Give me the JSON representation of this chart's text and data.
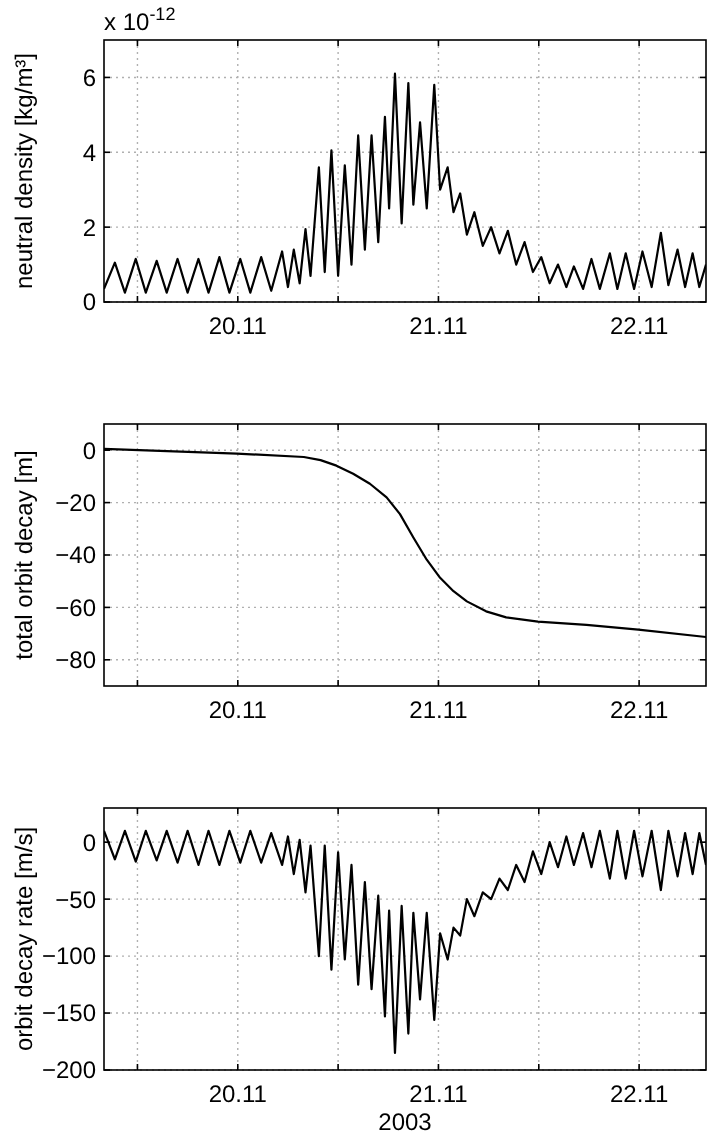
{
  "chart_data": [
    {
      "type": "line",
      "ylabel": "neutral density [kg/m³]",
      "annotations": [
        "x 10$^{-12}$"
      ],
      "grid": true,
      "xlim": [
        "2003-11-19T08:00",
        "2003-11-22T08:00"
      ],
      "xticks": [
        {
          "value": "2003-11-19T12:00",
          "label": null
        },
        {
          "value": "2003-11-20T00:00",
          "label": "20.11"
        },
        {
          "value": "2003-11-20T12:00",
          "label": null
        },
        {
          "value": "2003-11-21T00:00",
          "label": "21.11"
        },
        {
          "value": "2003-11-21T12:00",
          "label": null
        },
        {
          "value": "2003-11-22T00:00",
          "label": "22.11"
        }
      ],
      "ylim": [
        0,
        7
      ],
      "yticks": [
        0,
        2,
        4,
        6
      ],
      "x": [
        "2003-11-19T08:00",
        "2003-11-19T09:18",
        "2003-11-19T10:30",
        "2003-11-19T11:48",
        "2003-11-19T13:00",
        "2003-11-19T14:18",
        "2003-11-19T15:30",
        "2003-11-19T16:48",
        "2003-11-19T18:00",
        "2003-11-19T19:18",
        "2003-11-19T20:30",
        "2003-11-19T21:48",
        "2003-11-19T23:00",
        "2003-11-20T00:18",
        "2003-11-20T01:30",
        "2003-11-20T02:48",
        "2003-11-20T04:00",
        "2003-11-20T05:18",
        "2003-11-20T06:00",
        "2003-11-20T06:42",
        "2003-11-20T07:24",
        "2003-11-20T08:06",
        "2003-11-20T08:42",
        "2003-11-20T09:42",
        "2003-11-20T10:24",
        "2003-11-20T11:12",
        "2003-11-20T12:00",
        "2003-11-20T12:48",
        "2003-11-20T13:36",
        "2003-11-20T14:24",
        "2003-11-20T15:12",
        "2003-11-20T16:00",
        "2003-11-20T16:48",
        "2003-11-20T17:36",
        "2003-11-20T18:06",
        "2003-11-20T18:48",
        "2003-11-20T19:36",
        "2003-11-20T20:24",
        "2003-11-20T21:00",
        "2003-11-20T21:48",
        "2003-11-20T22:36",
        "2003-11-20T23:30",
        "2003-11-21T00:12",
        "2003-11-21T01:06",
        "2003-11-21T01:48",
        "2003-11-21T02:36",
        "2003-11-21T03:24",
        "2003-11-21T04:18",
        "2003-11-21T05:18",
        "2003-11-21T06:18",
        "2003-11-21T07:18",
        "2003-11-21T08:18",
        "2003-11-21T09:18",
        "2003-11-21T10:18",
        "2003-11-21T11:18",
        "2003-11-21T12:18",
        "2003-11-21T13:18",
        "2003-11-21T14:18",
        "2003-11-21T15:18",
        "2003-11-21T16:12",
        "2003-11-21T17:18",
        "2003-11-21T18:18",
        "2003-11-21T19:18",
        "2003-11-21T20:30",
        "2003-11-21T21:24",
        "2003-11-21T22:24",
        "2003-11-21T23:24",
        "2003-11-22T00:24",
        "2003-11-22T01:30",
        "2003-11-22T02:36",
        "2003-11-22T03:30",
        "2003-11-22T04:36",
        "2003-11-22T05:30",
        "2003-11-22T06:24",
        "2003-11-22T07:12",
        "2003-11-22T08:00"
      ],
      "series": [
        {
          "color": "#000000",
          "values": [
            0.35,
            1.05,
            0.25,
            1.15,
            0.25,
            1.1,
            0.25,
            1.15,
            0.25,
            1.15,
            0.25,
            1.2,
            0.25,
            1.15,
            0.25,
            1.2,
            0.3,
            1.35,
            0.4,
            1.4,
            0.5,
            1.95,
            0.7,
            3.6,
            0.8,
            4.05,
            0.7,
            3.65,
            1.0,
            4.45,
            1.4,
            4.45,
            1.6,
            4.95,
            2.5,
            6.1,
            2.1,
            5.85,
            2.6,
            4.8,
            2.5,
            5.8,
            3.0,
            3.6,
            2.4,
            2.9,
            1.8,
            2.4,
            1.5,
            2.0,
            1.3,
            1.9,
            1.0,
            1.6,
            0.8,
            1.2,
            0.5,
            1.0,
            0.4,
            0.95,
            0.35,
            1.15,
            0.35,
            1.3,
            0.35,
            1.3,
            0.35,
            1.35,
            0.4,
            1.85,
            0.45,
            1.4,
            0.4,
            1.3,
            0.4,
            1.0
          ]
        }
      ]
    },
    {
      "type": "line",
      "ylabel": "total orbit decay [m]",
      "grid": true,
      "xlim": [
        "2003-11-19T08:00",
        "2003-11-22T08:00"
      ],
      "xticks": [
        {
          "value": "2003-11-19T12:00",
          "label": null
        },
        {
          "value": "2003-11-20T00:00",
          "label": "20.11"
        },
        {
          "value": "2003-11-20T12:00",
          "label": null
        },
        {
          "value": "2003-11-21T00:00",
          "label": "21.11"
        },
        {
          "value": "2003-11-21T12:00",
          "label": null
        },
        {
          "value": "2003-11-22T00:00",
          "label": "22.11"
        }
      ],
      "ylim": [
        -90,
        10
      ],
      "yticks": [
        0,
        -20,
        -40,
        -60,
        -80
      ],
      "x": [
        "2003-11-19T08:00",
        "2003-11-19T23:54",
        "2003-11-20T07:54",
        "2003-11-20T09:54",
        "2003-11-20T11:48",
        "2003-11-20T13:48",
        "2003-11-20T15:48",
        "2003-11-20T17:48",
        "2003-11-20T19:24",
        "2003-11-20T21:00",
        "2003-11-20T22:36",
        "2003-11-21T00:12",
        "2003-11-21T01:48",
        "2003-11-21T03:24",
        "2003-11-21T05:42",
        "2003-11-21T08:06",
        "2003-11-21T11:54",
        "2003-11-21T17:42",
        "2003-11-21T23:54",
        "2003-11-22T08:00"
      ],
      "series": [
        {
          "color": "#000000",
          "values": [
            0.5,
            -1.3,
            -2.6,
            -3.8,
            -5.9,
            -9,
            -12.8,
            -18,
            -24.4,
            -33.3,
            -41.8,
            -48.7,
            -53.8,
            -57.7,
            -61.5,
            -63.8,
            -65.4,
            -66.7,
            -68.5,
            -71.3
          ]
        }
      ]
    },
    {
      "type": "line",
      "ylabel": "orbit decay rate [m/s]",
      "xlabel": "2003",
      "grid": true,
      "xlim": [
        "2003-11-19T08:00",
        "2003-11-22T08:00"
      ],
      "xticks": [
        {
          "value": "2003-11-19T12:00",
          "label": null
        },
        {
          "value": "2003-11-20T00:00",
          "label": "20.11"
        },
        {
          "value": "2003-11-20T12:00",
          "label": null
        },
        {
          "value": "2003-11-21T00:00",
          "label": "21.11"
        },
        {
          "value": "2003-11-21T12:00",
          "label": null
        },
        {
          "value": "2003-11-22T00:00",
          "label": "22.11"
        }
      ],
      "ylim": [
        -200,
        30
      ],
      "yticks": [
        0,
        -50,
        -100,
        -150,
        -200
      ],
      "x": [
        "2003-11-19T08:00",
        "2003-11-19T09:18",
        "2003-11-19T10:30",
        "2003-11-19T11:48",
        "2003-11-19T13:00",
        "2003-11-19T14:18",
        "2003-11-19T15:30",
        "2003-11-19T16:48",
        "2003-11-19T18:00",
        "2003-11-19T19:18",
        "2003-11-19T20:30",
        "2003-11-19T21:48",
        "2003-11-19T23:00",
        "2003-11-20T00:18",
        "2003-11-20T01:30",
        "2003-11-20T02:48",
        "2003-11-20T04:00",
        "2003-11-20T05:18",
        "2003-11-20T06:00",
        "2003-11-20T06:42",
        "2003-11-20T07:24",
        "2003-11-20T08:06",
        "2003-11-20T08:42",
        "2003-11-20T09:42",
        "2003-11-20T10:24",
        "2003-11-20T11:12",
        "2003-11-20T12:00",
        "2003-11-20T12:48",
        "2003-11-20T13:36",
        "2003-11-20T14:24",
        "2003-11-20T15:12",
        "2003-11-20T16:00",
        "2003-11-20T16:48",
        "2003-11-20T17:36",
        "2003-11-20T18:06",
        "2003-11-20T18:48",
        "2003-11-20T19:36",
        "2003-11-20T20:24",
        "2003-11-20T21:00",
        "2003-11-20T21:48",
        "2003-11-20T22:36",
        "2003-11-20T23:30",
        "2003-11-21T00:12",
        "2003-11-21T01:06",
        "2003-11-21T01:48",
        "2003-11-21T02:36",
        "2003-11-21T03:24",
        "2003-11-21T04:18",
        "2003-11-21T05:18",
        "2003-11-21T06:18",
        "2003-11-21T07:18",
        "2003-11-21T08:18",
        "2003-11-21T09:18",
        "2003-11-21T10:18",
        "2003-11-21T11:18",
        "2003-11-21T12:18",
        "2003-11-21T13:18",
        "2003-11-21T14:18",
        "2003-11-21T15:18",
        "2003-11-21T16:12",
        "2003-11-21T17:18",
        "2003-11-21T18:18",
        "2003-11-21T19:18",
        "2003-11-21T20:30",
        "2003-11-21T21:24",
        "2003-11-21T22:24",
        "2003-11-21T23:24",
        "2003-11-22T00:24",
        "2003-11-22T01:30",
        "2003-11-22T02:36",
        "2003-11-22T03:30",
        "2003-11-22T04:36",
        "2003-11-22T05:30",
        "2003-11-22T06:24",
        "2003-11-22T07:12",
        "2003-11-22T08:00"
      ],
      "series": [
        {
          "color": "#000000",
          "values": [
            10,
            -15,
            10,
            -17,
            10,
            -16,
            10,
            -18,
            10,
            -20,
            10,
            -20,
            10,
            -18,
            10,
            -18,
            8,
            -20,
            5,
            -28,
            2,
            -44,
            -3,
            -100,
            -3,
            -112,
            -9,
            -103,
            -20,
            -125,
            -35,
            -129,
            -47,
            -153,
            -60,
            -185,
            -56,
            -168,
            -62,
            -138,
            -62,
            -156,
            -80,
            -103,
            -75,
            -82,
            -50,
            -65,
            -44,
            -50,
            -32,
            -42,
            -20,
            -35,
            -8,
            -28,
            0,
            -22,
            5,
            -20,
            8,
            -22,
            10,
            -32,
            10,
            -32,
            10,
            -30,
            10,
            -42,
            10,
            -30,
            8,
            -28,
            8,
            -20
          ]
        }
      ]
    }
  ]
}
